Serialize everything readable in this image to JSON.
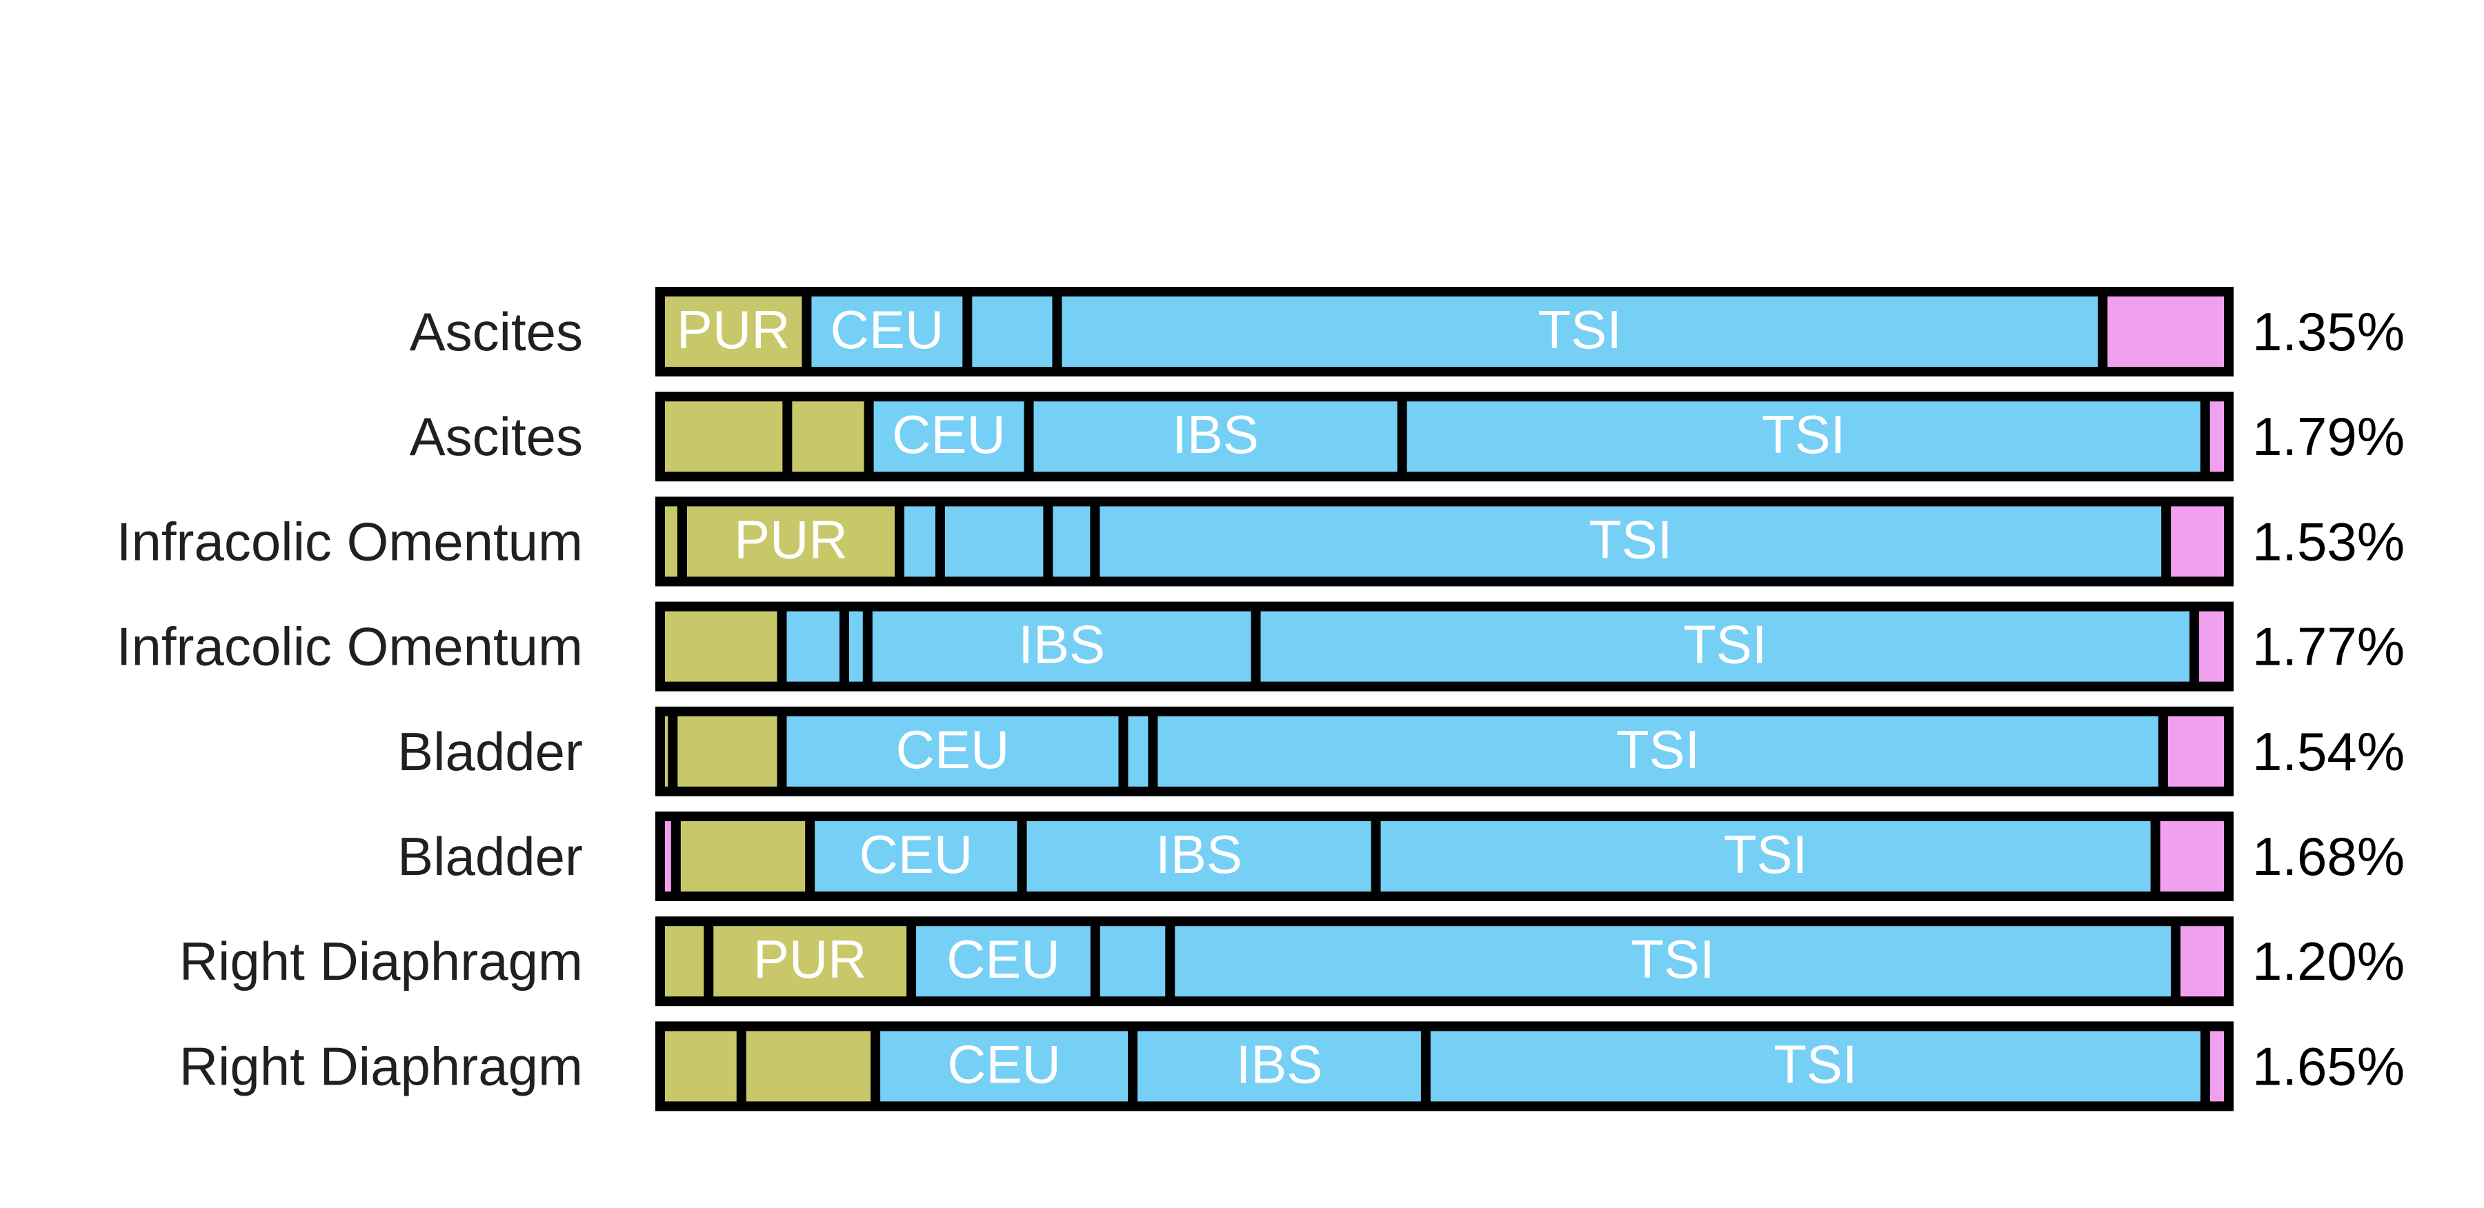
{
  "chart_data": {
    "type": "bar",
    "orientation": "horizontal",
    "stacked": true,
    "colors": {
      "olive": "#c8c86a",
      "blue": "#76cff5",
      "pink": "#f0a0ef",
      "divider": "#000000"
    },
    "rows": [
      {
        "label": "Ascites",
        "value_label": "1.35%",
        "segments": [
          {
            "width": 9.0,
            "color": "olive",
            "text": "PUR"
          },
          {
            "width": 10.2,
            "color": "blue",
            "text": "CEU"
          },
          {
            "width": 5.7,
            "color": "blue",
            "text": ""
          },
          {
            "width": 66.4,
            "color": "blue",
            "text": "TSI"
          },
          {
            "width": 7.7,
            "color": "pink",
            "text": ""
          }
        ]
      },
      {
        "label": "Ascites",
        "value_label": "1.79%",
        "segments": [
          {
            "width": 7.8,
            "color": "olive",
            "text": ""
          },
          {
            "width": 5.2,
            "color": "olive",
            "text": ""
          },
          {
            "width": 10.2,
            "color": "blue",
            "text": "CEU"
          },
          {
            "width": 23.8,
            "color": "blue",
            "text": "IBS"
          },
          {
            "width": 51.2,
            "color": "blue",
            "text": "TSI"
          },
          {
            "width": 1.2,
            "color": "pink",
            "text": ""
          }
        ]
      },
      {
        "label": "Infracolic Omentum",
        "value_label": "1.53%",
        "segments": [
          {
            "width": 1.1,
            "color": "olive",
            "text": ""
          },
          {
            "width": 13.9,
            "color": "olive",
            "text": "PUR"
          },
          {
            "width": 2.6,
            "color": "blue",
            "text": ""
          },
          {
            "width": 6.9,
            "color": "blue",
            "text": ""
          },
          {
            "width": 3.0,
            "color": "blue",
            "text": ""
          },
          {
            "width": 68.5,
            "color": "blue",
            "text": "TSI"
          },
          {
            "width": 3.7,
            "color": "pink",
            "text": ""
          }
        ]
      },
      {
        "label": "Infracolic Omentum",
        "value_label": "1.77%",
        "segments": [
          {
            "width": 7.5,
            "color": "olive",
            "text": ""
          },
          {
            "width": 4.0,
            "color": "blue",
            "text": ""
          },
          {
            "width": 1.5,
            "color": "blue",
            "text": ""
          },
          {
            "width": 24.9,
            "color": "blue",
            "text": "IBS"
          },
          {
            "width": 60.2,
            "color": "blue",
            "text": "TSI"
          },
          {
            "width": 1.9,
            "color": "pink",
            "text": ""
          }
        ]
      },
      {
        "label": "Bladder",
        "value_label": "1.54%",
        "segments": [
          {
            "width": 0.5,
            "color": "olive",
            "text": ""
          },
          {
            "width": 7.0,
            "color": "olive",
            "text": ""
          },
          {
            "width": 21.9,
            "color": "blue",
            "text": "CEU"
          },
          {
            "width": 1.9,
            "color": "blue",
            "text": ""
          },
          {
            "width": 64.8,
            "color": "blue",
            "text": "TSI"
          },
          {
            "width": 3.9,
            "color": "pink",
            "text": ""
          }
        ]
      },
      {
        "label": "Bladder",
        "value_label": "1.68%",
        "segments": [
          {
            "width": 0.7,
            "color": "pink",
            "text": ""
          },
          {
            "width": 8.6,
            "color": "olive",
            "text": ""
          },
          {
            "width": 13.6,
            "color": "blue",
            "text": "CEU"
          },
          {
            "width": 22.7,
            "color": "blue",
            "text": "IBS"
          },
          {
            "width": 50.0,
            "color": "blue",
            "text": "TSI"
          },
          {
            "width": 4.4,
            "color": "pink",
            "text": ""
          }
        ]
      },
      {
        "label": "Right Diaphragm",
        "value_label": "1.20%",
        "segments": [
          {
            "width": 2.8,
            "color": "olive",
            "text": ""
          },
          {
            "width": 13.0,
            "color": "olive",
            "text": "PUR"
          },
          {
            "width": 11.8,
            "color": "blue",
            "text": "CEU"
          },
          {
            "width": 4.8,
            "color": "blue",
            "text": ""
          },
          {
            "width": 64.5,
            "color": "blue",
            "text": "TSI"
          },
          {
            "width": 3.1,
            "color": "pink",
            "text": ""
          }
        ]
      },
      {
        "label": "Right Diaphragm",
        "value_label": "1.65%",
        "segments": [
          {
            "width": 4.9,
            "color": "olive",
            "text": ""
          },
          {
            "width": 8.6,
            "color": "olive",
            "text": ""
          },
          {
            "width": 16.5,
            "color": "blue",
            "text": "CEU"
          },
          {
            "width": 18.8,
            "color": "blue",
            "text": "IBS"
          },
          {
            "width": 50.0,
            "color": "blue",
            "text": "TSI"
          },
          {
            "width": 1.2,
            "color": "pink",
            "text": ""
          }
        ]
      }
    ]
  }
}
